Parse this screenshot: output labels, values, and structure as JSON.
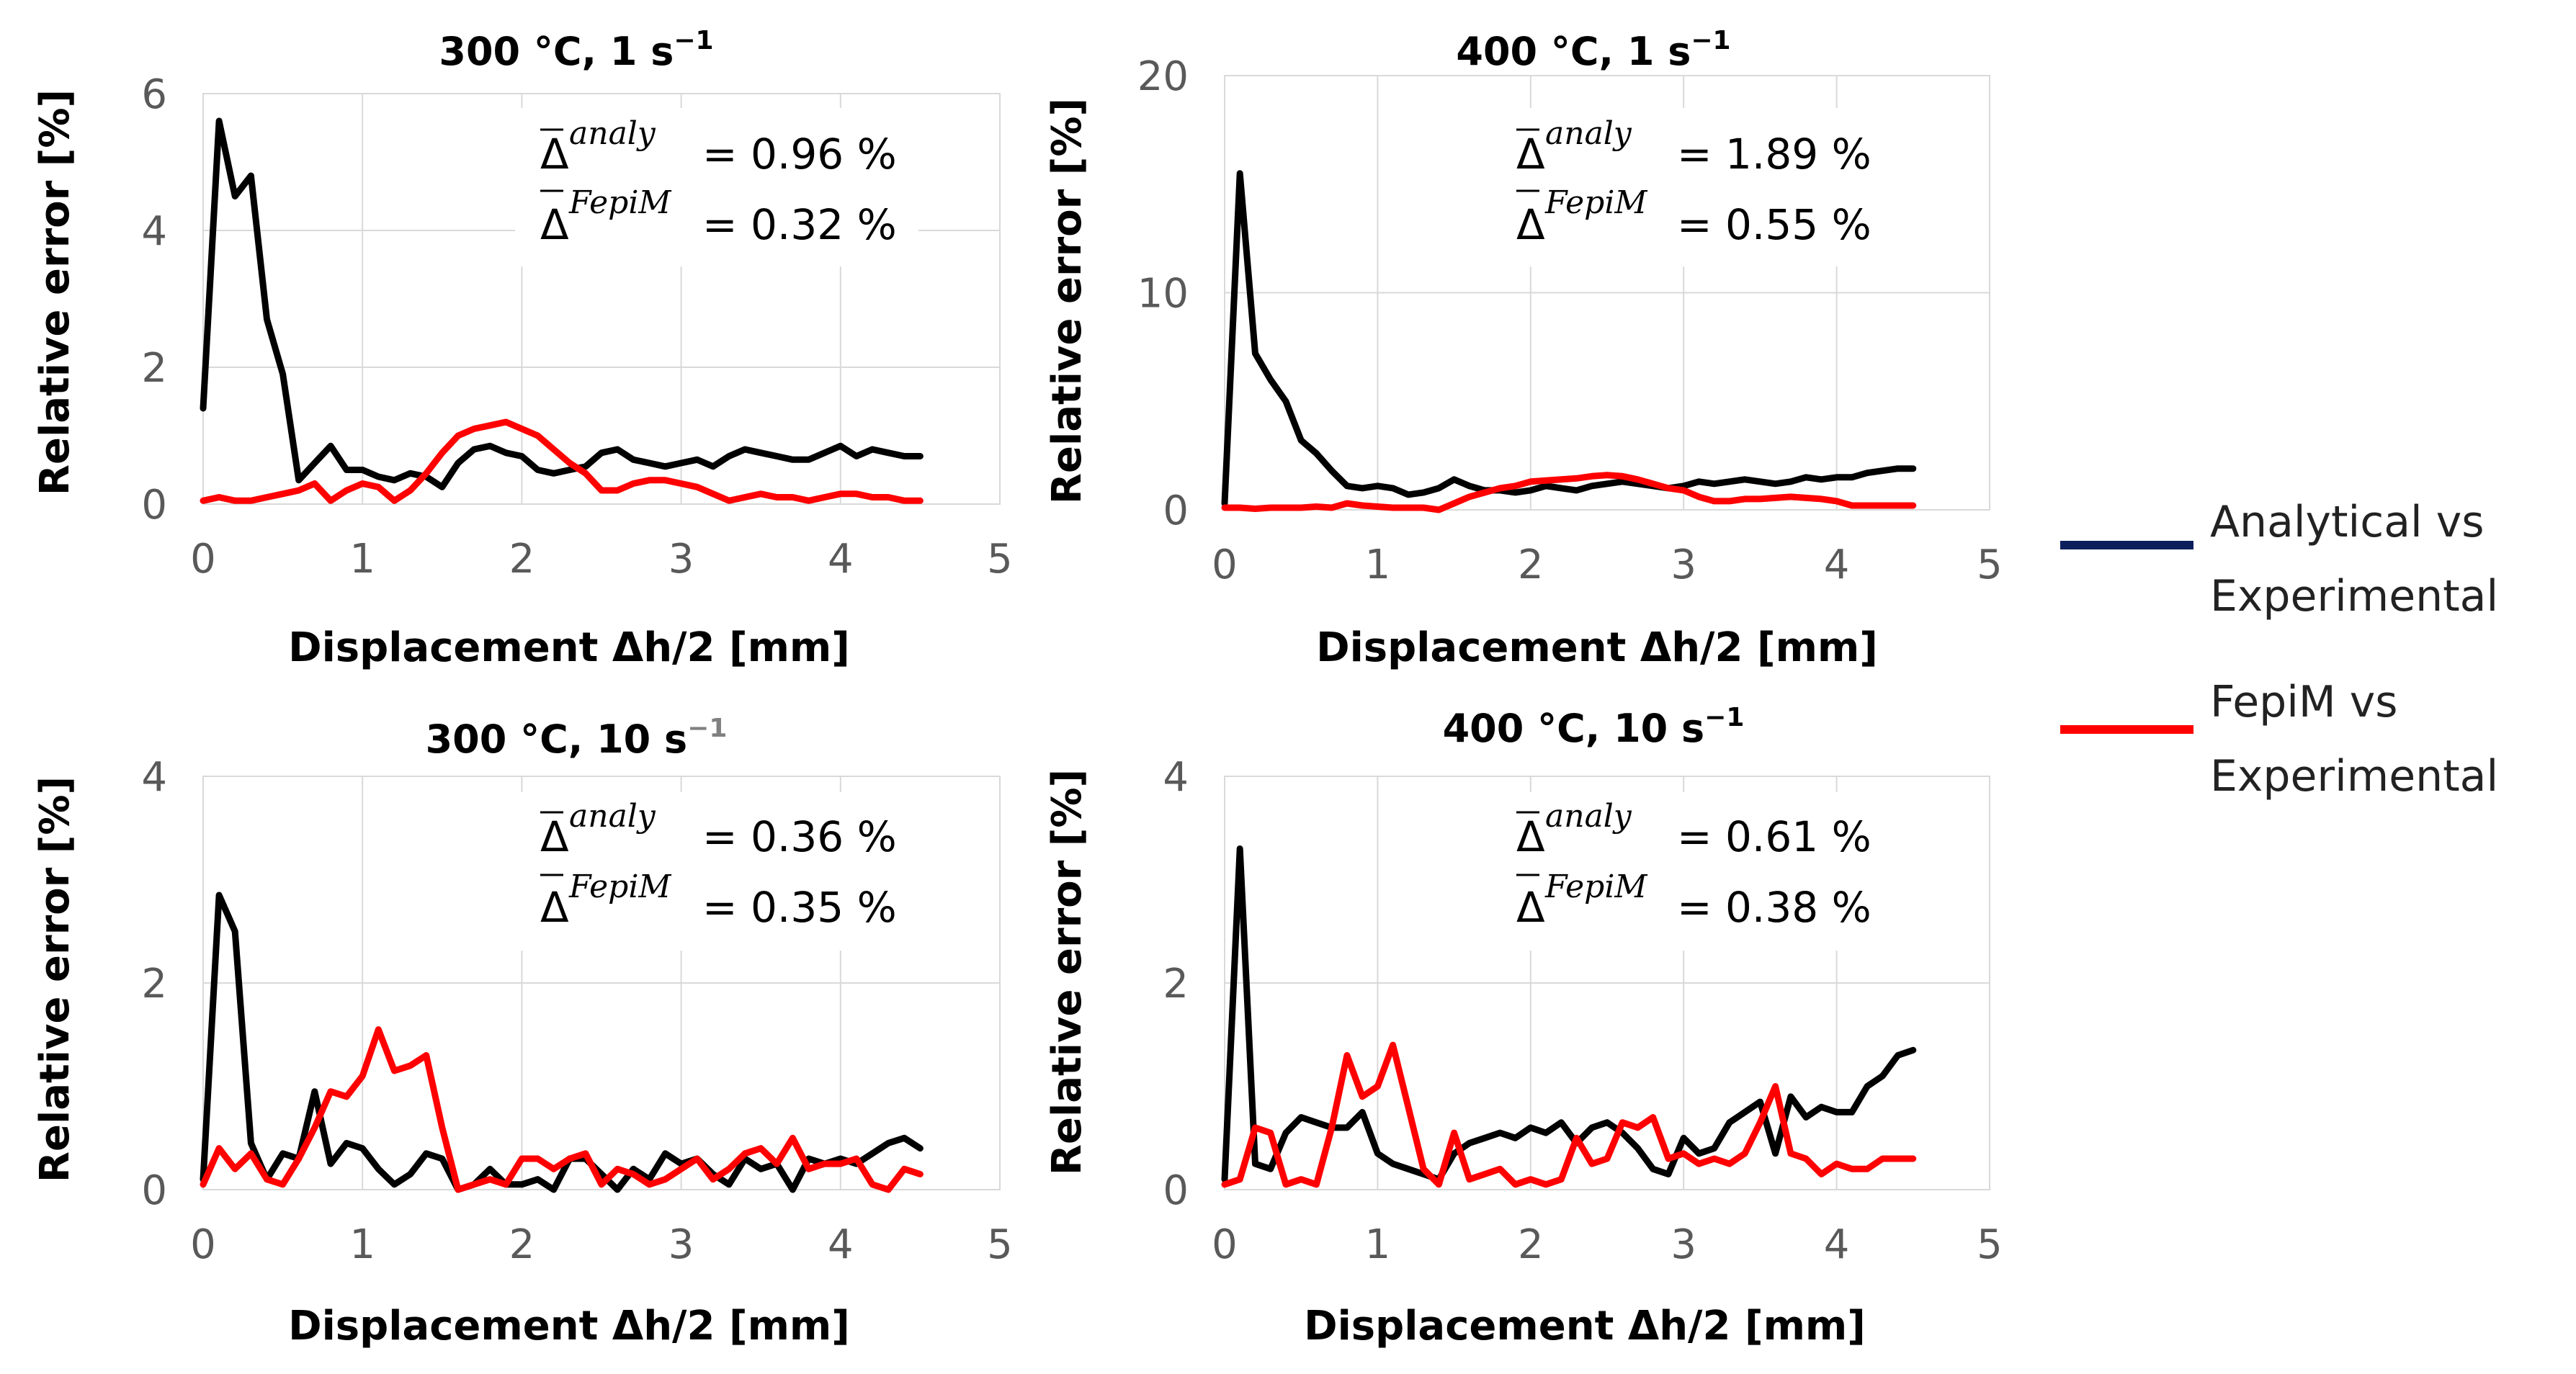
{
  "chart_data": [
    {
      "type": "line",
      "title": "300 °C, 1 s",
      "title_unit_sup": "−1",
      "xlabel": "Displacement Δh/2  [mm]",
      "ylabel": "Relative error [%]",
      "xlim": [
        0,
        5
      ],
      "ylim": [
        0,
        6
      ],
      "xticks": [
        "0",
        "1",
        "2",
        "3",
        "4",
        "5"
      ],
      "yticks": [
        "0",
        "2",
        "4",
        "6"
      ],
      "grid": true,
      "annotations": [
        {
          "symbol": "Δ",
          "sup": "analy",
          "text": " = 0.96 %"
        },
        {
          "symbol": "Δ",
          "sup": "FepiM",
          "text": "=  0.32 %"
        }
      ],
      "x": [
        0,
        0.1,
        0.2,
        0.3,
        0.4,
        0.5,
        0.6,
        0.7,
        0.8,
        0.9,
        1.0,
        1.1,
        1.2,
        1.3,
        1.4,
        1.5,
        1.6,
        1.7,
        1.8,
        1.9,
        2.0,
        2.1,
        2.2,
        2.3,
        2.4,
        2.5,
        2.6,
        2.7,
        2.8,
        2.9,
        3.0,
        3.1,
        3.2,
        3.3,
        3.4,
        3.5,
        3.6,
        3.7,
        3.8,
        3.9,
        4.0,
        4.1,
        4.2,
        4.3,
        4.4,
        4.5
      ],
      "series": [
        {
          "name": "Analytical vs Experimental",
          "color": "#000000",
          "values": [
            1.4,
            5.6,
            4.5,
            4.8,
            2.7,
            1.9,
            0.35,
            0.6,
            0.85,
            0.5,
            0.5,
            0.4,
            0.35,
            0.45,
            0.4,
            0.25,
            0.6,
            0.8,
            0.85,
            0.75,
            0.7,
            0.5,
            0.45,
            0.5,
            0.55,
            0.75,
            0.8,
            0.65,
            0.6,
            0.55,
            0.6,
            0.65,
            0.55,
            0.7,
            0.8,
            0.75,
            0.7,
            0.65,
            0.65,
            0.75,
            0.85,
            0.7,
            0.8,
            0.75,
            0.7,
            0.7
          ]
        },
        {
          "name": "FepiM vs Experimental",
          "color": "#ff0000",
          "values": [
            0.05,
            0.1,
            0.05,
            0.05,
            0.1,
            0.15,
            0.2,
            0.3,
            0.05,
            0.2,
            0.3,
            0.25,
            0.05,
            0.2,
            0.45,
            0.75,
            1.0,
            1.1,
            1.15,
            1.2,
            1.1,
            1.0,
            0.8,
            0.6,
            0.45,
            0.2,
            0.2,
            0.3,
            0.35,
            0.35,
            0.3,
            0.25,
            0.15,
            0.05,
            0.1,
            0.15,
            0.1,
            0.1,
            0.05,
            0.1,
            0.15,
            0.15,
            0.1,
            0.1,
            0.05,
            0.05
          ]
        }
      ]
    },
    {
      "type": "line",
      "title": "400 °C, 1 s",
      "title_unit_sup": "−1",
      "xlabel": "Displacement Δh/2  [mm]",
      "ylabel": "Relative error [%]",
      "xlim": [
        0,
        5
      ],
      "ylim": [
        0,
        20
      ],
      "xticks": [
        "0",
        "1",
        "2",
        "3",
        "4",
        "5"
      ],
      "yticks": [
        "0",
        "10",
        "20"
      ],
      "grid": true,
      "annotations": [
        {
          "symbol": "Δ",
          "sup": "analy",
          "text": " = 1.89 %"
        },
        {
          "symbol": "Δ",
          "sup": "FepiM",
          "text": "=  0.55 %"
        }
      ],
      "x": [
        0,
        0.1,
        0.2,
        0.3,
        0.4,
        0.5,
        0.6,
        0.7,
        0.8,
        0.9,
        1.0,
        1.1,
        1.2,
        1.3,
        1.4,
        1.5,
        1.6,
        1.7,
        1.8,
        1.9,
        2.0,
        2.1,
        2.2,
        2.3,
        2.4,
        2.5,
        2.6,
        2.7,
        2.8,
        2.9,
        3.0,
        3.1,
        3.2,
        3.3,
        3.4,
        3.5,
        3.6,
        3.7,
        3.8,
        3.9,
        4.0,
        4.1,
        4.2,
        4.3,
        4.4,
        4.5
      ],
      "series": [
        {
          "name": "Analytical vs Experimental",
          "color": "#000000",
          "values": [
            0.3,
            15.5,
            7.2,
            6.0,
            5.0,
            3.2,
            2.6,
            1.8,
            1.1,
            1.0,
            1.1,
            1.0,
            0.7,
            0.8,
            1.0,
            1.4,
            1.1,
            0.9,
            0.9,
            0.8,
            0.9,
            1.1,
            1.0,
            0.9,
            1.1,
            1.2,
            1.3,
            1.2,
            1.1,
            1.0,
            1.1,
            1.3,
            1.2,
            1.3,
            1.4,
            1.3,
            1.2,
            1.3,
            1.5,
            1.4,
            1.5,
            1.5,
            1.7,
            1.8,
            1.9,
            1.9
          ]
        },
        {
          "name": "FepiM vs Experimental",
          "color": "#ff0000",
          "values": [
            0.1,
            0.1,
            0.05,
            0.1,
            0.1,
            0.1,
            0.15,
            0.1,
            0.3,
            0.2,
            0.15,
            0.1,
            0.1,
            0.1,
            0.0,
            0.3,
            0.6,
            0.8,
            1.0,
            1.1,
            1.3,
            1.35,
            1.4,
            1.45,
            1.55,
            1.6,
            1.55,
            1.4,
            1.2,
            1.0,
            0.9,
            0.6,
            0.4,
            0.4,
            0.5,
            0.5,
            0.55,
            0.6,
            0.55,
            0.5,
            0.4,
            0.2,
            0.2,
            0.2,
            0.2,
            0.2
          ]
        }
      ]
    },
    {
      "type": "line",
      "title": "300 °C, 10 s",
      "title_unit_sup": "−1",
      "xlabel": "Displacement Δh/2  [mm]",
      "ylabel": "Relative error [%]",
      "xlim": [
        0,
        5
      ],
      "ylim": [
        0,
        4
      ],
      "xticks": [
        "0",
        "1",
        "2",
        "3",
        "4",
        "5"
      ],
      "yticks": [
        "0",
        "2",
        "4"
      ],
      "grid": true,
      "annotations": [
        {
          "symbol": "Δ",
          "sup": "analy",
          "text": " = 0.36 %"
        },
        {
          "symbol": "Δ",
          "sup": "FepiM",
          "text": "=  0.35 %"
        }
      ],
      "x": [
        0,
        0.1,
        0.2,
        0.3,
        0.4,
        0.5,
        0.6,
        0.7,
        0.8,
        0.9,
        1.0,
        1.1,
        1.2,
        1.3,
        1.4,
        1.5,
        1.6,
        1.7,
        1.8,
        1.9,
        2.0,
        2.1,
        2.2,
        2.3,
        2.4,
        2.5,
        2.6,
        2.7,
        2.8,
        2.9,
        3.0,
        3.1,
        3.2,
        3.3,
        3.4,
        3.5,
        3.6,
        3.7,
        3.8,
        3.9,
        4.0,
        4.1,
        4.2,
        4.3,
        4.4,
        4.5
      ],
      "series": [
        {
          "name": "Analytical vs Experimental",
          "color": "#000000",
          "values": [
            0.1,
            2.85,
            2.5,
            0.45,
            0.1,
            0.35,
            0.3,
            0.95,
            0.25,
            0.45,
            0.4,
            0.2,
            0.05,
            0.15,
            0.35,
            0.3,
            0.0,
            0.05,
            0.2,
            0.05,
            0.05,
            0.1,
            0.0,
            0.3,
            0.3,
            0.15,
            0.0,
            0.2,
            0.1,
            0.35,
            0.25,
            0.3,
            0.15,
            0.05,
            0.3,
            0.2,
            0.25,
            0.0,
            0.3,
            0.25,
            0.3,
            0.25,
            0.35,
            0.45,
            0.5,
            0.4
          ]
        },
        {
          "name": "FepiM vs Experimental",
          "color": "#ff0000",
          "values": [
            0.05,
            0.4,
            0.2,
            0.35,
            0.1,
            0.05,
            0.3,
            0.6,
            0.95,
            0.9,
            1.1,
            1.55,
            1.15,
            1.2,
            1.3,
            0.6,
            0.0,
            0.05,
            0.1,
            0.05,
            0.3,
            0.3,
            0.2,
            0.3,
            0.35,
            0.05,
            0.2,
            0.15,
            0.05,
            0.1,
            0.2,
            0.3,
            0.1,
            0.2,
            0.35,
            0.4,
            0.25,
            0.5,
            0.2,
            0.25,
            0.25,
            0.3,
            0.05,
            0.0,
            0.2,
            0.15
          ]
        }
      ]
    },
    {
      "type": "line",
      "title": "400 °C, 10 s",
      "title_unit_sup": "−1",
      "xlabel": "Displacement Δh/2  [mm]",
      "ylabel": "Relative error [%]",
      "xlim": [
        0,
        5
      ],
      "ylim": [
        0,
        4
      ],
      "xticks": [
        "0",
        "1",
        "2",
        "3",
        "4",
        "5"
      ],
      "yticks": [
        "0",
        "2",
        "4"
      ],
      "grid": true,
      "annotations": [
        {
          "symbol": "Δ",
          "sup": "analy",
          "text": " = 0.61 %"
        },
        {
          "symbol": "Δ",
          "sup": "FepiM",
          "text": "=  0.38 %"
        }
      ],
      "x": [
        0,
        0.1,
        0.2,
        0.3,
        0.4,
        0.5,
        0.6,
        0.7,
        0.8,
        0.9,
        1.0,
        1.1,
        1.2,
        1.3,
        1.4,
        1.5,
        1.6,
        1.7,
        1.8,
        1.9,
        2.0,
        2.1,
        2.2,
        2.3,
        2.4,
        2.5,
        2.6,
        2.7,
        2.8,
        2.9,
        3.0,
        3.1,
        3.2,
        3.3,
        3.4,
        3.5,
        3.6,
        3.7,
        3.8,
        3.9,
        4.0,
        4.1,
        4.2,
        4.3,
        4.4,
        4.5
      ],
      "series": [
        {
          "name": "Analytical vs Experimental",
          "color": "#000000",
          "values": [
            0.1,
            3.3,
            0.25,
            0.2,
            0.55,
            0.7,
            0.65,
            0.6,
            0.6,
            0.75,
            0.35,
            0.25,
            0.2,
            0.15,
            0.1,
            0.35,
            0.45,
            0.5,
            0.55,
            0.5,
            0.6,
            0.55,
            0.65,
            0.45,
            0.6,
            0.65,
            0.55,
            0.4,
            0.2,
            0.15,
            0.5,
            0.35,
            0.4,
            0.65,
            0.75,
            0.85,
            0.35,
            0.9,
            0.7,
            0.8,
            0.75,
            0.75,
            1.0,
            1.1,
            1.3,
            1.35
          ]
        },
        {
          "name": "FepiM vs Experimental",
          "color": "#ff0000",
          "values": [
            0.05,
            0.1,
            0.6,
            0.55,
            0.05,
            0.1,
            0.05,
            0.6,
            1.3,
            0.9,
            1.0,
            1.4,
            0.8,
            0.2,
            0.05,
            0.55,
            0.1,
            0.15,
            0.2,
            0.05,
            0.1,
            0.05,
            0.1,
            0.5,
            0.25,
            0.3,
            0.65,
            0.6,
            0.7,
            0.3,
            0.35,
            0.25,
            0.3,
            0.25,
            0.35,
            0.65,
            1.0,
            0.35,
            0.3,
            0.15,
            0.25,
            0.2,
            0.2,
            0.3,
            0.3,
            0.3
          ]
        }
      ]
    }
  ],
  "legend": {
    "placement": "right",
    "items": [
      {
        "label_line1": "Analytical vs",
        "label_line2": "Experimental",
        "color": "#0b1f5c"
      },
      {
        "label_line1": "FepiM vs",
        "label_line2": "Experimental",
        "color": "#ff0000"
      }
    ]
  }
}
